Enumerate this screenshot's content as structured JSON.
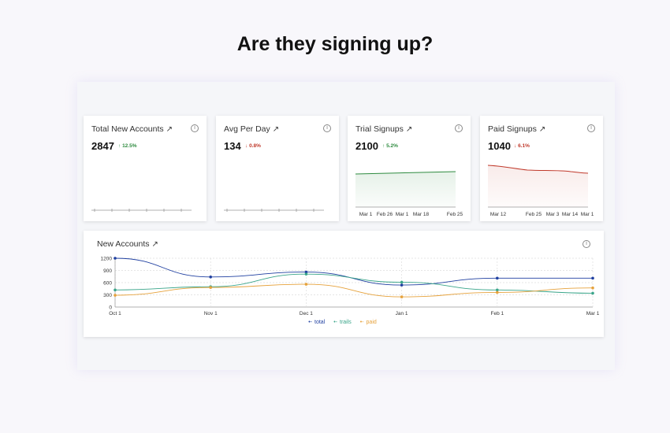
{
  "page": {
    "title": "Are they signing up?"
  },
  "cards": [
    {
      "title": "Total New Accounts",
      "arrow": "↗",
      "value": "2847",
      "delta_arrow": "↑",
      "delta": "12.5%",
      "trend": "up",
      "chart": "empty"
    },
    {
      "title": "Avg Per Day",
      "arrow": "↗",
      "value": "134",
      "delta_arrow": "↓",
      "delta": "0.8%",
      "trend": "down",
      "chart": "empty"
    },
    {
      "title": "Trial Signups",
      "arrow": "↗",
      "value": "2100",
      "delta_arrow": "↑",
      "delta": "5.2%",
      "trend": "up",
      "chart": "green",
      "ticks": [
        "Mar 1",
        "Feb 26",
        "Mar 1",
        "Mar 18",
        "Feb 25"
      ]
    },
    {
      "title": "Paid Signups",
      "arrow": "↗",
      "value": "1040",
      "delta_arrow": "↓",
      "delta": "6.1%",
      "trend": "down",
      "chart": "red",
      "ticks": [
        "Mar 12",
        "Feb 25",
        "Mar 3",
        "Mar 14",
        "Mar 1"
      ]
    }
  ],
  "colors": {
    "up": "#2e8b3f",
    "down": "#c0392b",
    "total": "#1f3fa0",
    "trails": "#3aa58a",
    "paid": "#e6a23c",
    "spark_green": "#2e8b3f",
    "spark_red": "#c0392b"
  },
  "chart_data": {
    "type": "line",
    "title": "New Accounts",
    "title_arrow": "↗",
    "info_icon": "info-icon",
    "x": [
      "Oct 1",
      "Nov 1",
      "Dec 1",
      "Jan 1",
      "Feb 1",
      "Mar 1"
    ],
    "ylim": [
      0,
      1200
    ],
    "yticks": [
      0,
      300,
      600,
      900,
      1200
    ],
    "grid": true,
    "legend_position": "bottom",
    "series": [
      {
        "name": "total",
        "values": [
          1200,
          740,
          860,
          540,
          710,
          710
        ]
      },
      {
        "name": "trails",
        "values": [
          420,
          500,
          810,
          610,
          420,
          340
        ]
      },
      {
        "name": "paid",
        "values": [
          290,
          480,
          560,
          250,
          360,
          470
        ]
      }
    ]
  }
}
